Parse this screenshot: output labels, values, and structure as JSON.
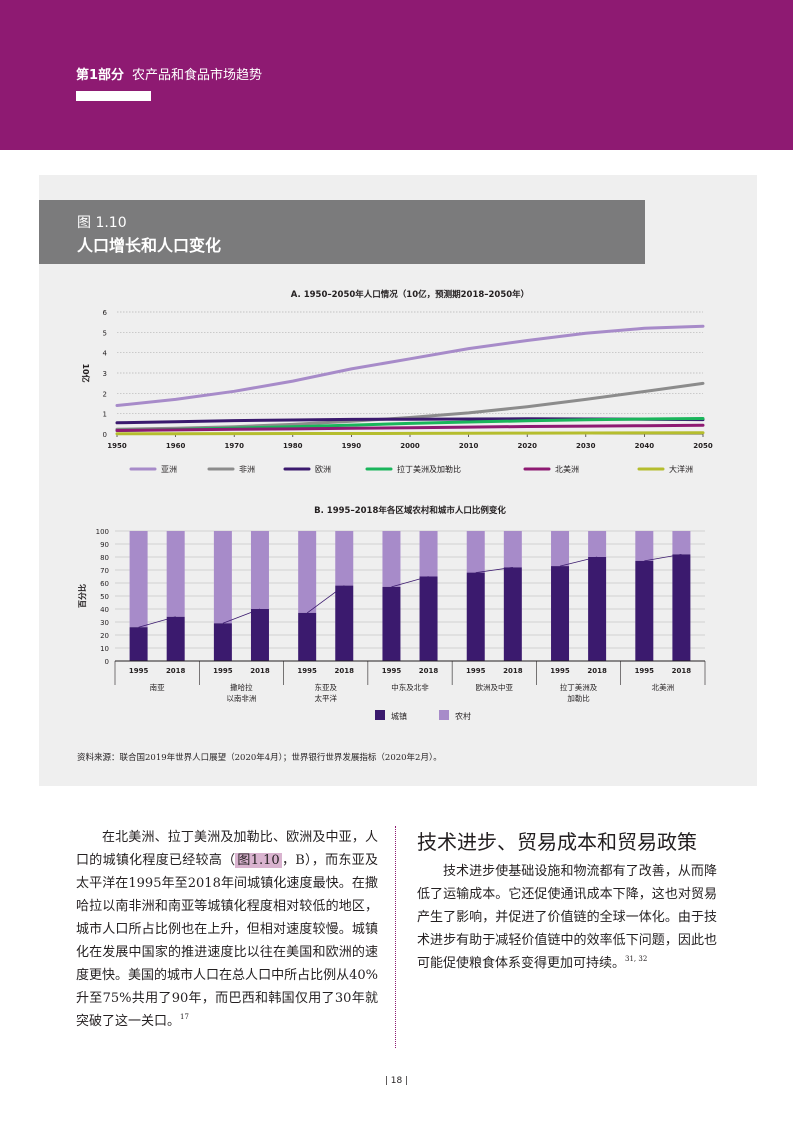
{
  "header": {
    "part": "第1部分",
    "title": "农产品和食品市场趋势",
    "color": "#8e1a72"
  },
  "figure": {
    "number": "图 1.10",
    "title": "人口增长和人口变化"
  },
  "chart_data": [
    {
      "type": "line",
      "title": "A. 1950–2050年人口情况（10亿，预测期2018–2050年）",
      "ylabel": "10亿",
      "xlim": [
        1950,
        2050
      ],
      "ylim": [
        0,
        6
      ],
      "x_ticks": [
        1950,
        1960,
        1970,
        1980,
        1990,
        2000,
        2010,
        2020,
        2030,
        2040,
        2050
      ],
      "y_ticks": [
        0,
        1,
        2,
        3,
        4,
        5,
        6
      ],
      "x": [
        1950,
        1960,
        1970,
        1980,
        1990,
        2000,
        2010,
        2020,
        2030,
        2040,
        2050
      ],
      "series": [
        {
          "name": "亚洲",
          "color": "#a78bc9",
          "values": [
            1.4,
            1.7,
            2.1,
            2.6,
            3.2,
            3.7,
            4.2,
            4.6,
            4.95,
            5.2,
            5.3
          ]
        },
        {
          "name": "非洲",
          "color": "#8c8c8c",
          "values": [
            0.23,
            0.28,
            0.36,
            0.47,
            0.63,
            0.81,
            1.04,
            1.34,
            1.7,
            2.09,
            2.49
          ]
        },
        {
          "name": "欧洲",
          "color": "#3b1a6e",
          "values": [
            0.55,
            0.6,
            0.66,
            0.69,
            0.72,
            0.73,
            0.74,
            0.75,
            0.74,
            0.73,
            0.71
          ]
        },
        {
          "name": "拉丁美洲及加勒比",
          "color": "#1ab55b",
          "values": [
            0.17,
            0.22,
            0.29,
            0.36,
            0.44,
            0.52,
            0.59,
            0.65,
            0.7,
            0.74,
            0.76
          ]
        },
        {
          "name": "北美洲",
          "color": "#8e1a72",
          "values": [
            0.17,
            0.2,
            0.23,
            0.25,
            0.28,
            0.31,
            0.34,
            0.37,
            0.39,
            0.41,
            0.43
          ]
        },
        {
          "name": "大洋洲",
          "color": "#b5bd2e",
          "values": [
            0.013,
            0.016,
            0.02,
            0.023,
            0.027,
            0.031,
            0.037,
            0.043,
            0.048,
            0.053,
            0.057
          ]
        }
      ]
    },
    {
      "type": "bar",
      "stacked": true,
      "title": "B. 1995–2018年各区域农村和城市人口比例变化",
      "ylabel": "百分比",
      "ylim": [
        0,
        100
      ],
      "y_ticks": [
        0,
        10,
        20,
        30,
        40,
        50,
        60,
        70,
        80,
        90,
        100
      ],
      "groups": [
        "南亚",
        "撒哈拉以南非洲",
        "东亚及太平洋",
        "中东及北非",
        "欧洲及中亚",
        "拉丁美洲及加勒比",
        "北美洲"
      ],
      "group_labels": [
        [
          "南亚"
        ],
        [
          "撒哈拉",
          "以南非洲"
        ],
        [
          "东亚及",
          "太平洋"
        ],
        [
          "中东及北非"
        ],
        [
          "欧洲及中亚"
        ],
        [
          "拉丁美洲及",
          "加勒比"
        ],
        [
          "北美洲"
        ]
      ],
      "categories": [
        "1995",
        "2018"
      ],
      "series": [
        {
          "name": "城镇",
          "color": "#3b1a6e",
          "values": [
            [
              26,
              34
            ],
            [
              29,
              40
            ],
            [
              37,
              58
            ],
            [
              57,
              65
            ],
            [
              68,
              72
            ],
            [
              73,
              80
            ],
            [
              77,
              82
            ]
          ]
        },
        {
          "name": "农村",
          "color": "#a78bc9",
          "values": [
            [
              74,
              66
            ],
            [
              71,
              60
            ],
            [
              63,
              42
            ],
            [
              43,
              35
            ],
            [
              32,
              28
            ],
            [
              27,
              20
            ],
            [
              23,
              18
            ]
          ]
        }
      ]
    }
  ],
  "source_note": "资料来源：联合国2019年世界人口展望（2020年4月）；世界银行世界发展指标（2020年2月）。",
  "left_column": {
    "text_1": "在北美洲、拉丁美洲及加勒比、欧洲及中亚，人口的城镇化程度已经较高（",
    "fig_ref": "图1.10",
    "text_2": "，B），而东亚及太平洋在1995年至2018年间城镇化速度最快。在撒哈拉以南非洲和南亚等城镇化程度相对较低的地区，城市人口所占比例也在上升，但相对速度较慢。城镇化在发展中国家的推进速度比以往在美国和欧洲的速度更快。美国的城市人口在总人口中所占比例从40%升至75%共用了90年，而巴西和韩国仅用了30年就突破了这一关口。",
    "footnote": "17"
  },
  "right_column": {
    "heading": "技术进步、贸易成本和贸易政策",
    "text": "技术进步使基础设施和物流都有了改善，从而降低了运输成本。它还促使通讯成本下降，这也对贸易产生了影响，并促进了价值链的全球一体化。由于技术进步有助于减轻价值链中的效率低下问题，因此也可能促使粮食体系变得更加可持续。",
    "footnote": "31, 32"
  },
  "page_number": "18"
}
